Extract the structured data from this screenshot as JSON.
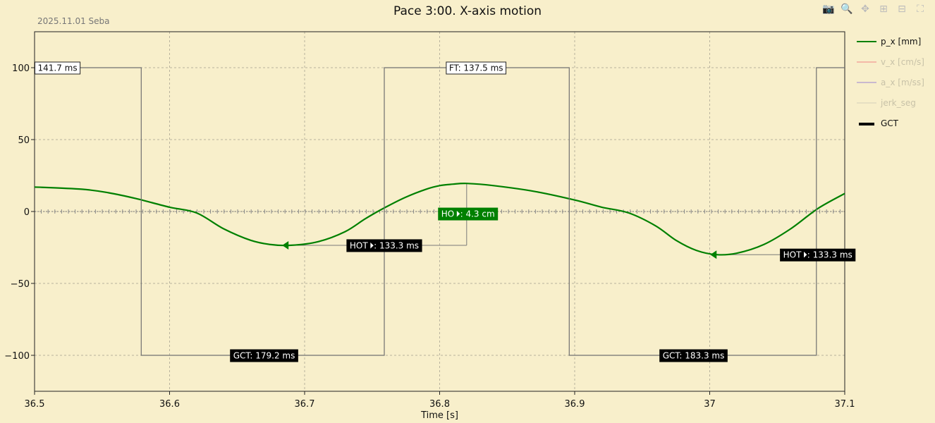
{
  "title": "Pace 3:00. X-axis motion",
  "subtitle": "2025.11.01 Seba",
  "modebar": {
    "icons": [
      "camera-icon",
      "zoom-icon",
      "pan-icon",
      "zoom-in-icon",
      "zoom-out-icon",
      "autoscale-icon"
    ],
    "glyphs": [
      "📷",
      "🔍",
      "✥",
      "⊞",
      "⊟",
      "⛶"
    ]
  },
  "legend": [
    {
      "label": "p_x [mm]",
      "color": "#008000",
      "visible": true
    },
    {
      "label": "v_x [cm/s]",
      "color": "#f4b9a8",
      "visible": false
    },
    {
      "label": "a_x [m/ss]",
      "color": "#c9b9cf",
      "visible": false
    },
    {
      "label": "jerk_seg",
      "color": "#e6dfc2",
      "visible": false
    },
    {
      "label": "GCT",
      "color": "#000000",
      "visible": true
    }
  ],
  "chart_data": {
    "type": "line",
    "xlabel": "Time [s]",
    "ylabel": "",
    "xlim": [
      36.5,
      37.1
    ],
    "ylim": [
      -125,
      125
    ],
    "xticks": [
      36.5,
      36.6,
      36.7,
      36.8,
      36.9,
      37.0,
      37.1
    ],
    "xtick_labels": [
      "36.5",
      "36.6",
      "36.7",
      "36.8",
      "36.9",
      "37",
      "37.1"
    ],
    "yticks": [
      100,
      50,
      0,
      -50,
      -100
    ],
    "ytick_labels": [
      "100",
      "50",
      "0",
      "−50",
      "−100"
    ],
    "grid": true,
    "legend_position": "right",
    "series": [
      {
        "name": "p_x [mm]",
        "color": "#008000",
        "x": [
          36.5,
          36.535,
          36.555,
          36.575,
          36.6,
          36.62,
          36.64,
          36.66,
          36.675,
          36.69,
          36.71,
          36.73,
          36.745,
          36.76,
          36.775,
          36.79,
          36.8,
          36.81,
          36.82,
          36.84,
          36.87,
          36.9,
          36.92,
          36.94,
          36.96,
          36.975,
          36.99,
          37.005,
          37.02,
          37.04,
          37.06,
          37.08,
          37.1
        ],
        "y": [
          17,
          15.5,
          13,
          9,
          3,
          -1,
          -12,
          -20,
          -23,
          -23.5,
          -21,
          -14,
          -5,
          3,
          10,
          15.5,
          18,
          19,
          19.5,
          18,
          14,
          8,
          3,
          -1,
          -10,
          -20,
          -27,
          -30,
          -29,
          -23,
          -12,
          2,
          12.5
        ]
      },
      {
        "name": "GCT",
        "color": "#707070",
        "x": [
          36.5,
          36.579,
          36.579,
          36.759,
          36.759,
          36.896,
          36.896,
          37.079,
          37.079,
          37.1
        ],
        "y": [
          100,
          100,
          -100,
          -100,
          100,
          100,
          -100,
          -100,
          100,
          100
        ]
      }
    ],
    "hlines": [
      {
        "y": 0,
        "color": "#7a7a7a",
        "style": "dotted-ticks"
      },
      {
        "x1": 36.686,
        "x2": 36.82,
        "y": -23.5,
        "color": "#7a7a7a"
      },
      {
        "x1": 36.82,
        "x2": 36.82,
        "y1": -23.5,
        "y2": 19.5,
        "color": "#7a7a7a"
      },
      {
        "x1": 37.003,
        "x2": 37.1,
        "y": -30,
        "color": "#7a7a7a"
      }
    ],
    "markers": [
      {
        "x": 36.686,
        "y": -23.5,
        "color": "#008000"
      },
      {
        "x": 37.003,
        "y": -30,
        "color": "#008000"
      }
    ],
    "annotations": [
      {
        "text": "141.7 ms",
        "x": 36.517,
        "y": 100,
        "style": "white"
      },
      {
        "text": "FT: 137.5 ms",
        "x": 36.827,
        "y": 100,
        "style": "white"
      },
      {
        "text": "HO ⏵: 4.3 cm",
        "x": 36.821,
        "y": -1.5,
        "style": "green"
      },
      {
        "text": "HOT ⏵: 133.3 ms",
        "x": 36.759,
        "y": -23.5,
        "style": "black"
      },
      {
        "text": "HOT ⏵: 133.3 ms",
        "x": 37.08,
        "y": -30,
        "style": "black"
      },
      {
        "text": "GCT: 179.2 ms",
        "x": 36.67,
        "y": -100,
        "style": "black"
      },
      {
        "text": "GCT: 183.3 ms",
        "x": 36.988,
        "y": -100,
        "style": "black"
      }
    ]
  }
}
